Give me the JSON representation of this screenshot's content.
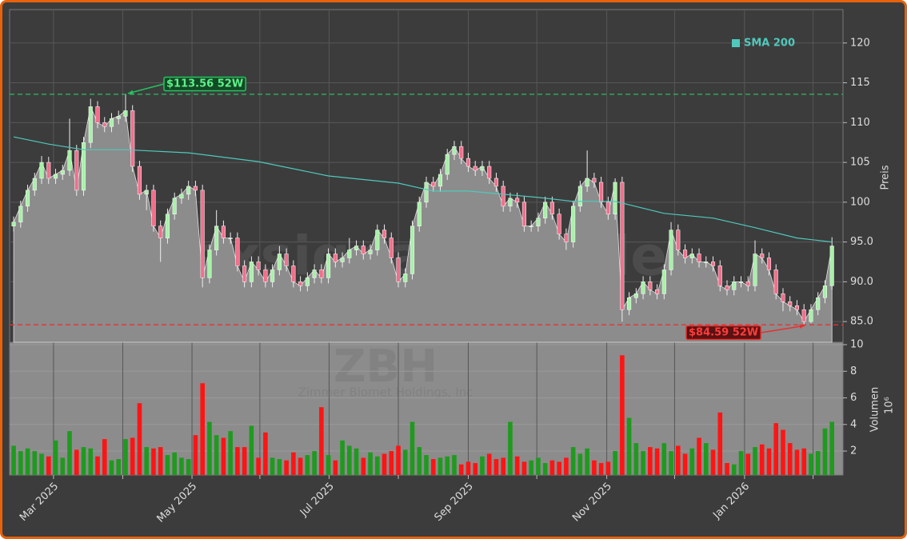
{
  "chart_data": {
    "type": "candlestick",
    "watermark": "forexsignale.trade",
    "symbol": "ZBH",
    "company": "Zimmer Biomet Holdings, Inc",
    "ylabel": "Preis",
    "volume_label": "Volumen",
    "volume_unit": "10⁶",
    "x": [
      0,
      1,
      2,
      3,
      4,
      5,
      6,
      7,
      8,
      9,
      10,
      11,
      12,
      13,
      14,
      15,
      16,
      17,
      18,
      19,
      20,
      21,
      22,
      23,
      24,
      25,
      26,
      27,
      28,
      29,
      30,
      31,
      32,
      33,
      34,
      35,
      36,
      37,
      38,
      39,
      40,
      41,
      42,
      43,
      44,
      45,
      46,
      47,
      48,
      49,
      50,
      51,
      52,
      53,
      54,
      55,
      56,
      57,
      58,
      59,
      60,
      61,
      62,
      63,
      64,
      65,
      66,
      67,
      68,
      69,
      70,
      71,
      72,
      73,
      74,
      75,
      76,
      77,
      78,
      79,
      80,
      81,
      82,
      83,
      84,
      85,
      86,
      87,
      88,
      89,
      90,
      91,
      92,
      93,
      94,
      95,
      96,
      97,
      98,
      99,
      100,
      101,
      102,
      103,
      104,
      105,
      106,
      107,
      108,
      109,
      110,
      111,
      112,
      113,
      114,
      115,
      116,
      117
    ],
    "open": [
      97,
      97.5,
      99.5,
      101.5,
      103,
      105,
      103,
      103.5,
      104,
      106.5,
      101.5,
      107.5,
      112,
      110,
      109.5,
      110.5,
      110.8,
      111.5,
      104.5,
      101,
      101.5,
      97,
      95.5,
      98.5,
      100.5,
      101,
      102,
      101.5,
      90.5,
      94,
      97,
      95.5,
      95.5,
      92,
      90,
      92.5,
      91.5,
      90,
      91.5,
      93.5,
      92,
      90,
      89.5,
      90.5,
      91.5,
      90.5,
      93.5,
      92.5,
      93,
      94,
      94.5,
      93.5,
      94,
      96.5,
      95.5,
      93,
      90,
      91,
      97,
      100,
      102.5,
      102,
      103.5,
      106,
      107,
      105.5,
      104.5,
      104,
      104.5,
      103,
      102,
      99.5,
      100.5,
      100,
      97,
      97,
      98,
      100,
      98.5,
      96,
      95,
      99.5,
      102,
      103,
      102.5,
      100,
      98.5,
      102.5,
      86.5,
      88,
      88.5,
      90,
      89,
      88.5,
      91.5,
      96.5,
      94,
      93,
      93.5,
      92.5,
      92.5,
      92,
      89.5,
      89,
      90,
      90,
      89.5,
      93.5,
      93,
      91.5,
      88.5,
      87.5,
      87,
      86.5,
      85,
      86.5,
      88,
      89.5
    ],
    "high": [
      98.2,
      100.2,
      102.2,
      103.7,
      105.8,
      105.7,
      104.2,
      104.7,
      110.5,
      107.2,
      108.2,
      113,
      112.7,
      110.7,
      111.2,
      111.5,
      113.56,
      112.2,
      105.2,
      102.2,
      102.2,
      97.7,
      99.2,
      101.2,
      101.7,
      102.7,
      102.7,
      102.2,
      94.7,
      99,
      97.7,
      96.2,
      96.2,
      92.7,
      93.2,
      93.2,
      92.2,
      92.2,
      94.5,
      94.2,
      92.7,
      90.7,
      91.2,
      92.2,
      92.2,
      94.2,
      94.2,
      93.7,
      95.5,
      95.2,
      95.2,
      94.7,
      97.2,
      97.2,
      96.2,
      93.7,
      91.7,
      97.7,
      100.7,
      103.2,
      103.2,
      104.2,
      106.7,
      107.7,
      107.7,
      106.2,
      105.2,
      105.2,
      105.2,
      103.7,
      102.7,
      101.2,
      101.2,
      100.7,
      97.7,
      98.7,
      100.7,
      100.7,
      99.2,
      96.7,
      100.2,
      102.7,
      106.5,
      103.7,
      103.2,
      100.7,
      103,
      103.2,
      88.7,
      89.2,
      90.7,
      90.7,
      89.7,
      92.2,
      97.5,
      97.2,
      94.7,
      94.2,
      94.2,
      93.2,
      93.2,
      92.7,
      90.2,
      90.7,
      90.7,
      90.7,
      95.2,
      94.2,
      93.7,
      92.2,
      89.2,
      88.2,
      87.7,
      87.2,
      87.2,
      88.7,
      90.2,
      95.6
    ],
    "low": [
      96.3,
      96.8,
      98.8,
      100.8,
      102.3,
      102.3,
      102.3,
      102.8,
      103.3,
      100.8,
      100.8,
      106.8,
      109.3,
      108.8,
      108.8,
      109.8,
      110.1,
      103.8,
      100.3,
      99,
      96.3,
      92.5,
      94.8,
      97.8,
      99.8,
      100.3,
      100.8,
      89.3,
      89.8,
      93.3,
      94.8,
      94.8,
      91.3,
      89.3,
      89.3,
      90.8,
      89.3,
      89.3,
      90.8,
      91.3,
      89.3,
      88.8,
      88.8,
      89.8,
      89.8,
      89.8,
      91.8,
      91.8,
      92.3,
      93.3,
      92.8,
      92.8,
      93.3,
      94.8,
      92.3,
      89.3,
      89.3,
      90.3,
      96.3,
      99.3,
      101.3,
      101.3,
      102.8,
      105.3,
      104.8,
      103.8,
      103.3,
      103.3,
      102.3,
      101.3,
      98.8,
      98.8,
      99.3,
      96.3,
      96.3,
      96.3,
      97.3,
      97.8,
      95.3,
      94,
      94.3,
      98.8,
      101.3,
      101.8,
      99.3,
      97.8,
      97.8,
      85,
      85.8,
      87.3,
      87.8,
      88.3,
      87.8,
      87.8,
      90.8,
      93.3,
      92.3,
      92.3,
      91.8,
      91.8,
      91.3,
      88.8,
      88.3,
      88.3,
      89.3,
      88.8,
      88.8,
      92.3,
      90.8,
      87.8,
      86.3,
      86.3,
      85.8,
      84.59,
      84.8,
      85.8,
      87.3,
      89
    ],
    "close": [
      97.5,
      99.5,
      101.5,
      103,
      105,
      103,
      103.5,
      104,
      106.5,
      101.5,
      107.5,
      112,
      110,
      109.5,
      110.5,
      110.8,
      111.5,
      104.5,
      101,
      101.5,
      97,
      95.5,
      98.5,
      100.5,
      101,
      102,
      101.5,
      90.5,
      94,
      97,
      95.5,
      95.5,
      92,
      90,
      92.5,
      91.5,
      90,
      91.5,
      93.5,
      92,
      90,
      89.5,
      90.5,
      91.5,
      90.5,
      93.5,
      92.5,
      93,
      94,
      94.5,
      93.5,
      94,
      96.5,
      95.5,
      93,
      90,
      91,
      97,
      100,
      102.5,
      102,
      103.5,
      106,
      107,
      105.5,
      104.5,
      104,
      104.5,
      103,
      102,
      99.5,
      100.5,
      100,
      97,
      97,
      98,
      100,
      98.5,
      96,
      95,
      99.5,
      102,
      103,
      102.5,
      100,
      98.5,
      102.5,
      86.5,
      88,
      88.5,
      90,
      89,
      88.5,
      91.5,
      96.5,
      94,
      93,
      93.5,
      92.5,
      92.5,
      92,
      89.5,
      89,
      90,
      90,
      89.5,
      93.5,
      93,
      91.5,
      88.5,
      87.5,
      87,
      86.5,
      85,
      86.5,
      88,
      89.5,
      94.5
    ],
    "volume": [
      2.4,
      2.0,
      2.2,
      2.0,
      1.8,
      1.6,
      2.8,
      1.5,
      3.5,
      2.1,
      2.3,
      2.2,
      1.6,
      2.9,
      1.3,
      1.4,
      2.9,
      3.0,
      5.6,
      2.3,
      2.2,
      2.3,
      1.7,
      1.9,
      1.5,
      1.4,
      3.2,
      7.1,
      4.2,
      3.2,
      3.0,
      3.5,
      2.3,
      2.3,
      3.9,
      1.5,
      3.4,
      1.5,
      1.4,
      1.3,
      1.9,
      1.5,
      1.7,
      2.0,
      5.3,
      1.7,
      1.3,
      2.8,
      2.4,
      2.2,
      1.5,
      1.9,
      1.6,
      1.8,
      2.0,
      2.4,
      2.1,
      4.2,
      2.3,
      1.7,
      1.4,
      1.5,
      1.6,
      1.7,
      1.0,
      1.2,
      1.1,
      1.6,
      1.8,
      1.4,
      1.5,
      4.2,
      1.6,
      1.2,
      1.3,
      1.5,
      1.1,
      1.3,
      1.2,
      1.5,
      2.3,
      1.8,
      2.2,
      1.3,
      1.1,
      1.2,
      2.0,
      9.2,
      4.5,
      2.6,
      2.0,
      2.3,
      2.2,
      2.6,
      2.0,
      2.4,
      1.8,
      2.2,
      3.0,
      2.6,
      2.1,
      4.9,
      1.1,
      1.0,
      2.0,
      1.8,
      2.3,
      2.5,
      2.2,
      4.1,
      3.6,
      2.6,
      2.1,
      2.2,
      1.8,
      2.0,
      3.7,
      4.2
    ],
    "candle_up_color": "#a8f0a8",
    "candle_down_color": "#f0708c",
    "volume_up_color": "#1f9a1f",
    "volume_down_color": "#ff1414",
    "area_color": "#8c8c8c",
    "series": [
      {
        "name": "SMA 200",
        "color": "#4fc9bc",
        "x": [
          0,
          5,
          10,
          16,
          25,
          35,
          45,
          55,
          60,
          65,
          75,
          80,
          86,
          93,
          100,
          106,
          112,
          117
        ],
        "values": [
          108.2,
          107.3,
          106.6,
          106.6,
          106.2,
          105.1,
          103.3,
          102.4,
          101.4,
          101.4,
          100.6,
          100.1,
          100.1,
          98.6,
          98.0,
          96.8,
          95.5,
          95.0
        ]
      }
    ],
    "high_line": {
      "value": 113.56,
      "label": "$113.56 52W",
      "color": "#27c060"
    },
    "low_line": {
      "value": 84.59,
      "label": "$84.59 52W",
      "color": "#e83030"
    },
    "xlim": [
      -0.58,
      118.58
    ],
    "xticks": [
      {
        "value": 5.7,
        "label": "Mar 2025"
      },
      {
        "value": 25.5,
        "label": "May 2025"
      },
      {
        "value": 45.1,
        "label": "Jul 2025"
      },
      {
        "value": 65.0,
        "label": "Sep 2025"
      },
      {
        "value": 84.8,
        "label": "Nov 2025"
      },
      {
        "value": 104.5,
        "label": "Jan 2026"
      }
    ],
    "x_minor_ticks": [
      15.6,
      35.2,
      55.0,
      74.8,
      94.5,
      114.3
    ],
    "ylim": [
      82.4,
      124.2
    ],
    "yticks": [
      {
        "value": 85,
        "label": "85.0"
      },
      {
        "value": 90,
        "label": "90.0"
      },
      {
        "value": 95,
        "label": "95.0"
      },
      100,
      105,
      110,
      115,
      120
    ],
    "volume_ylim": [
      0.2,
      10.18
    ],
    "volume_yticks": [
      2,
      4,
      6,
      8,
      10
    ],
    "grid": true,
    "legend": "upper right"
  }
}
